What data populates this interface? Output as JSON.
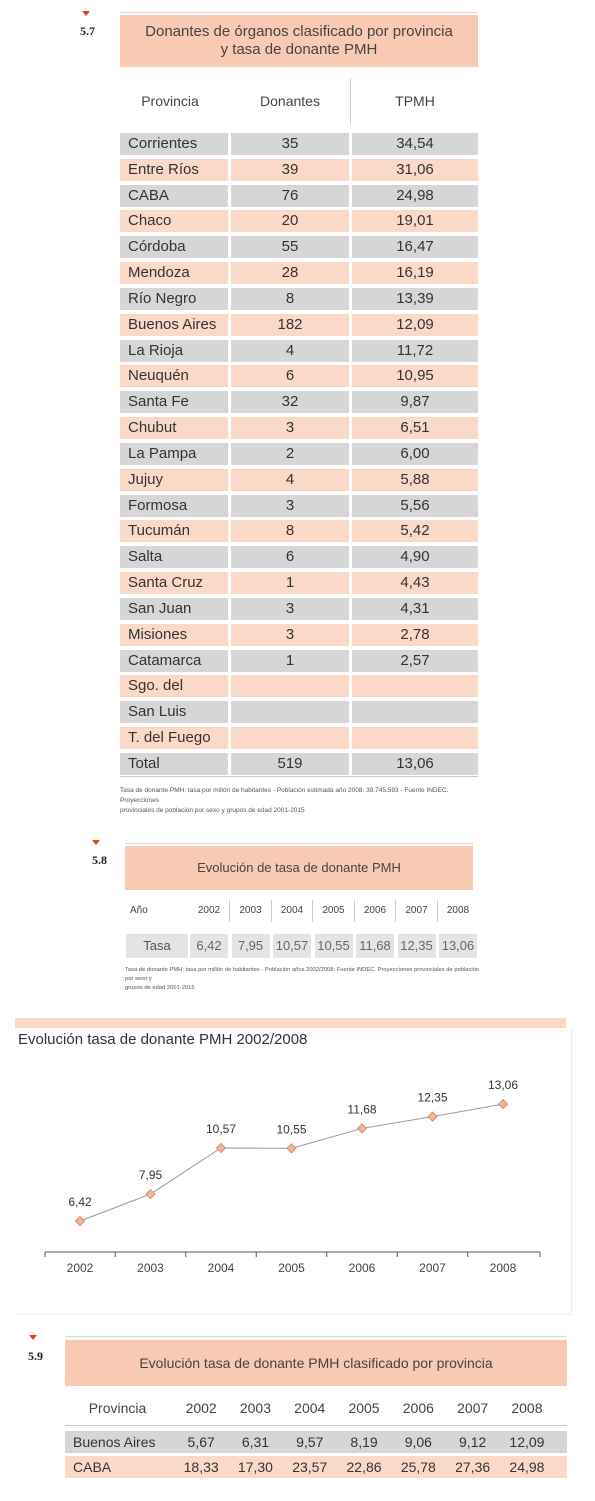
{
  "section_5_7": {
    "number": "5.7",
    "title_line1": "Donantes de órganos clasificado por provincia",
    "title_line2": "y tasa de donante PMH",
    "headers": [
      "Provincia",
      "Donantes",
      "TPMH"
    ],
    "rows": [
      {
        "provincia": "Corrientes",
        "donantes": "35",
        "tpmh": "34,54"
      },
      {
        "provincia": "Entre Ríos",
        "donantes": "39",
        "tpmh": "31,06"
      },
      {
        "provincia": "CABA",
        "donantes": "76",
        "tpmh": "24,98"
      },
      {
        "provincia": "Chaco",
        "donantes": "20",
        "tpmh": "19,01"
      },
      {
        "provincia": "Córdoba",
        "donantes": "55",
        "tpmh": "16,47"
      },
      {
        "provincia": "Mendoza",
        "donantes": "28",
        "tpmh": "16,19"
      },
      {
        "provincia": "Río Negro",
        "donantes": "8",
        "tpmh": "13,39"
      },
      {
        "provincia": "Buenos Aires",
        "donantes": "182",
        "tpmh": "12,09"
      },
      {
        "provincia": "La Rioja",
        "donantes": "4",
        "tpmh": "11,72"
      },
      {
        "provincia": "Neuquén",
        "donantes": "6",
        "tpmh": "10,95"
      },
      {
        "provincia": "Santa Fe",
        "donantes": "32",
        "tpmh": "9,87"
      },
      {
        "provincia": "Chubut",
        "donantes": "3",
        "tpmh": "6,51"
      },
      {
        "provincia": "La Pampa",
        "donantes": "2",
        "tpmh": "6,00"
      },
      {
        "provincia": "Jujuy",
        "donantes": "4",
        "tpmh": "5,88"
      },
      {
        "provincia": "Formosa",
        "donantes": "3",
        "tpmh": "5,56"
      },
      {
        "provincia": "Tucumán",
        "donantes": "8",
        "tpmh": "5,42"
      },
      {
        "provincia": "Salta",
        "donantes": "6",
        "tpmh": "4,90"
      },
      {
        "provincia": "Santa Cruz",
        "donantes": "1",
        "tpmh": "4,43"
      },
      {
        "provincia": "San Juan",
        "donantes": "3",
        "tpmh": "4,31"
      },
      {
        "provincia": "Misiones",
        "donantes": "3",
        "tpmh": "2,78"
      },
      {
        "provincia": "Catamarca",
        "donantes": "1",
        "tpmh": "2,57"
      },
      {
        "provincia": "Sgo. del Estero",
        "donantes": "",
        "tpmh": ""
      },
      {
        "provincia": "San Luis",
        "donantes": "",
        "tpmh": ""
      },
      {
        "provincia": "T. del Fuego",
        "donantes": "",
        "tpmh": ""
      },
      {
        "provincia": "Total",
        "donantes": "519",
        "tpmh": "13,06"
      }
    ],
    "note_line1": "Tasa de donante PMH: tasa por millón de habitantes - Población estimada año 2008: 39.745.593 - Fuente INDEC. Proyecciones",
    "note_line2": "provinciales de población por sexo y grupos de edad 2001-2015"
  },
  "section_5_8": {
    "number": "5.8",
    "title": "Evolución de tasa de donante PMH",
    "year_label": "Año",
    "years": [
      "2002",
      "2003",
      "2004",
      "2005",
      "2006",
      "2007",
      "2008"
    ],
    "rate_label": "Tasa",
    "rates": [
      "6,42",
      "7,95",
      "10,57",
      "10,55",
      "11,68",
      "12,35",
      "13,06"
    ],
    "note_line1": "Tasa de donante PMH: tasa por millón de habitantes - Población años 2002/2008: Fuente INDEC. Proyecciones provinciales de población por sexo y",
    "note_line2": "grupos de edad 2001-2015"
  },
  "chart": {
    "title": "Evolución tasa de donante PMH 2002/2008",
    "marker_color": "#f2b49a",
    "marker_stroke": "#d98b6c",
    "line_color": "#999999"
  },
  "chart_data": {
    "type": "line",
    "title": "Evolución tasa de donante PMH 2002/2008",
    "x": [
      "2002",
      "2003",
      "2004",
      "2005",
      "2006",
      "2007",
      "2008"
    ],
    "series": [
      {
        "values": [
          6.42,
          7.95,
          10.57,
          10.55,
          11.68,
          12.35,
          13.06
        ]
      }
    ],
    "data_labels": [
      "6,42",
      "7,95",
      "10,57",
      "10,55",
      "11,68",
      "12,35",
      "13,06"
    ],
    "ylim": [
      4,
      14
    ],
    "grid": false,
    "xlabel": "",
    "ylabel": ""
  },
  "section_5_9": {
    "number": "5.9",
    "title": "Evolución tasa de donante PMH clasificado por provincia",
    "headers": [
      "Provincia",
      "2002",
      "2003",
      "2004",
      "2005",
      "2006",
      "2007",
      "2008"
    ],
    "rows": [
      {
        "provincia": "Buenos Aires",
        "values": [
          "5,67",
          "6,31",
          "9,57",
          "8,19",
          "9,06",
          "9,12",
          "12,09"
        ]
      },
      {
        "provincia": "CABA",
        "values": [
          "18,33",
          "17,30",
          "23,57",
          "22,86",
          "25,78",
          "27,36",
          "24,98"
        ]
      }
    ]
  }
}
